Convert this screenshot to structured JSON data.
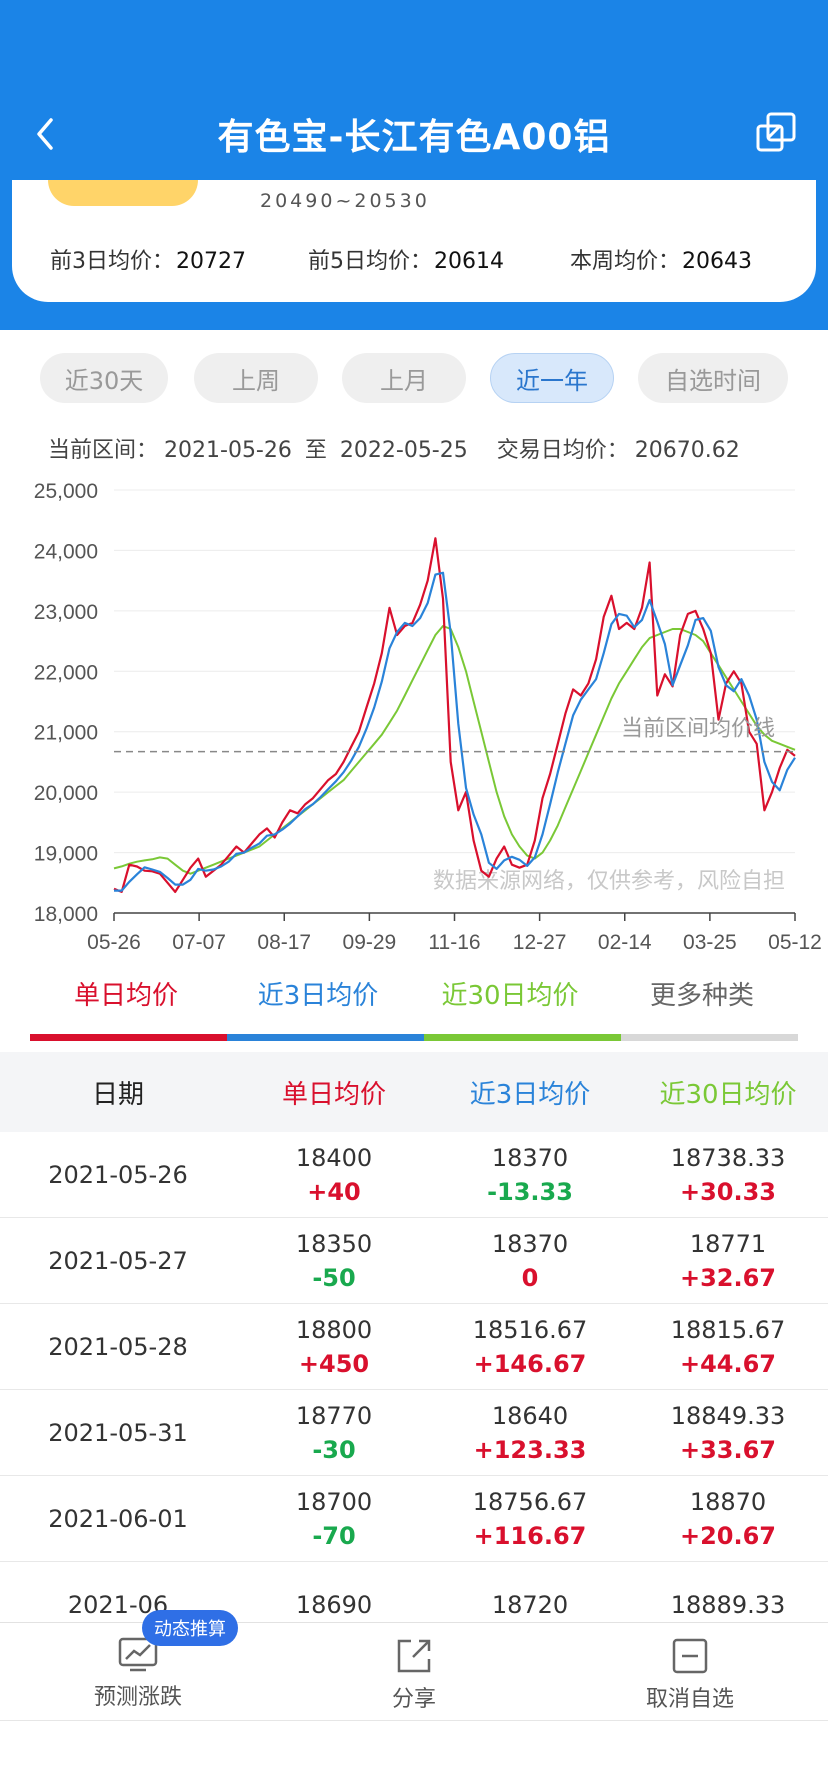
{
  "header": {
    "title": "有色宝-长江有色A00铝",
    "bg_color": "#1b84e7"
  },
  "summary": {
    "price_range": "20490~20530",
    "avg3_label": "前3日均价：",
    "avg3_value": "20727",
    "avg5_label": "前5日均价：",
    "avg5_value": "20614",
    "week_label": "本周均价：",
    "week_value": "20643"
  },
  "range_tabs": [
    "近30天",
    "上周",
    "上月",
    "近一年",
    "自选时间"
  ],
  "active_tab": "近一年",
  "interval": {
    "label": "当前区间：",
    "start": "2021-05-26",
    "to": "至",
    "end": "2022-05-25",
    "avg_label": "交易日均价：",
    "avg_value": "20670.62"
  },
  "chart_data": {
    "type": "line",
    "x_ticks": [
      "05-26",
      "07-07",
      "08-17",
      "09-29",
      "11-16",
      "12-27",
      "02-14",
      "03-25",
      "05-12"
    ],
    "y_ticks": [
      "25,000",
      "24,000",
      "23,000",
      "22,000",
      "21,000",
      "20,000",
      "19,000",
      "18,000"
    ],
    "ylim": [
      18000,
      25000
    ],
    "reference_line": {
      "label": "当前区间均价线",
      "value": 20670.62
    },
    "watermark": "数据来源网络，仅供参考，风险自担",
    "series": [
      {
        "name": "单日均价",
        "color": "#d9102d",
        "values": [
          18400,
          18350,
          18800,
          18770,
          18700,
          18690,
          18650,
          18500,
          18350,
          18550,
          18750,
          18900,
          18600,
          18700,
          18800,
          18950,
          19100,
          19000,
          19150,
          19300,
          19400,
          19250,
          19500,
          19700,
          19650,
          19800,
          19900,
          20050,
          20200,
          20300,
          20500,
          20750,
          21000,
          21400,
          21800,
          22300,
          23050,
          22600,
          22750,
          22800,
          23100,
          23500,
          24200,
          23200,
          20500,
          19700,
          20000,
          19200,
          18700,
          18600,
          18900,
          19100,
          18800,
          18750,
          18800,
          19200,
          19900,
          20300,
          20800,
          21300,
          21700,
          21600,
          21800,
          22200,
          22900,
          23250,
          22700,
          22800,
          22700,
          23050,
          23800,
          21600,
          21950,
          21750,
          22600,
          22950,
          23000,
          22700,
          22300,
          21200,
          21800,
          22000,
          21800,
          21000,
          20800,
          19700,
          20000,
          20400,
          20700,
          20600
        ]
      },
      {
        "name": "近3日均价",
        "color": "#2a83d9",
        "values": [
          18370,
          18370,
          18516.67,
          18640,
          18756.67,
          18720,
          18680,
          18580,
          18470,
          18470,
          18550,
          18730,
          18700,
          18720,
          18770,
          18850,
          18980,
          19000,
          19080,
          19150,
          19280,
          19300,
          19380,
          19480,
          19600,
          19720,
          19800,
          19920,
          20050,
          20180,
          20330,
          20520,
          20750,
          21050,
          21400,
          21830,
          22380,
          22650,
          22800,
          22750,
          22880,
          23130,
          23600,
          23630,
          22630,
          21130,
          20070,
          19630,
          19300,
          18830,
          18730,
          18870,
          18930,
          18880,
          18780,
          18920,
          19300,
          19800,
          20330,
          20800,
          21270,
          21530,
          21700,
          21870,
          22300,
          22780,
          22950,
          22920,
          22730,
          22850,
          23180,
          22820,
          22450,
          21770,
          22100,
          22430,
          22850,
          22880,
          22670,
          22070,
          21770,
          21670,
          21870,
          21600,
          21200,
          20500,
          20170,
          20030,
          20370,
          20570
        ]
      },
      {
        "name": "近30日均价",
        "color": "#7ac836",
        "values": [
          18738.33,
          18771,
          18815.67,
          18849.33,
          18870,
          18889.33,
          18920,
          18900,
          18800,
          18700,
          18650,
          18700,
          18750,
          18800,
          18850,
          18900,
          18950,
          19000,
          19050,
          19100,
          19200,
          19300,
          19400,
          19500,
          19600,
          19700,
          19800,
          19900,
          20000,
          20100,
          20200,
          20350,
          20500,
          20650,
          20800,
          20950,
          21150,
          21350,
          21600,
          21850,
          22100,
          22350,
          22600,
          22750,
          22700,
          22400,
          22000,
          21500,
          21000,
          20500,
          20000,
          19600,
          19300,
          19100,
          18950,
          18900,
          19000,
          19200,
          19450,
          19750,
          20050,
          20350,
          20650,
          20950,
          21250,
          21550,
          21800,
          22000,
          22200,
          22400,
          22550,
          22600,
          22650,
          22700,
          22700,
          22650,
          22600,
          22500,
          22300,
          22100,
          21900,
          21700,
          21500,
          21300,
          21100,
          20950,
          20850,
          20800,
          20750,
          20700
        ]
      }
    ]
  },
  "legend": {
    "daily": "单日均价",
    "avg3": "近3日均价",
    "avg30": "近30日均价",
    "more": "更多种类"
  },
  "table": {
    "headers": [
      "日期",
      "单日均价",
      "近3日均价",
      "近30日均价"
    ],
    "rows": [
      {
        "date": "2021-05-26",
        "daily": "18400",
        "daily_chg": "+40",
        "avg3": "18370",
        "avg3_chg": "-13.33",
        "avg30": "18738.33",
        "avg30_chg": "+30.33"
      },
      {
        "date": "2021-05-27",
        "daily": "18350",
        "daily_chg": "-50",
        "avg3": "18370",
        "avg3_chg": "0",
        "avg30": "18771",
        "avg30_chg": "+32.67"
      },
      {
        "date": "2021-05-28",
        "daily": "18800",
        "daily_chg": "+450",
        "avg3": "18516.67",
        "avg3_chg": "+146.67",
        "avg30": "18815.67",
        "avg30_chg": "+44.67"
      },
      {
        "date": "2021-05-31",
        "daily": "18770",
        "daily_chg": "-30",
        "avg3": "18640",
        "avg3_chg": "+123.33",
        "avg30": "18849.33",
        "avg30_chg": "+33.67"
      },
      {
        "date": "2021-06-01",
        "daily": "18700",
        "daily_chg": "-70",
        "avg3": "18756.67",
        "avg3_chg": "+116.67",
        "avg30": "18870",
        "avg30_chg": "+20.67"
      },
      {
        "date": "2021-06",
        "daily": "18690",
        "daily_chg": "",
        "avg3": "18720",
        "avg3_chg": "",
        "avg30": "18889.33",
        "avg30_chg": ""
      }
    ]
  },
  "bottom_bar": {
    "predict": "预测涨跌",
    "badge": "动态推算",
    "share": "分享",
    "unfollow": "取消自选"
  },
  "colors": {
    "red": "#d9102d",
    "blue": "#2a83d9",
    "green": "#7ac836",
    "gray": "#d8d8d8",
    "up": "#d9102d",
    "down": "#19a94e"
  }
}
